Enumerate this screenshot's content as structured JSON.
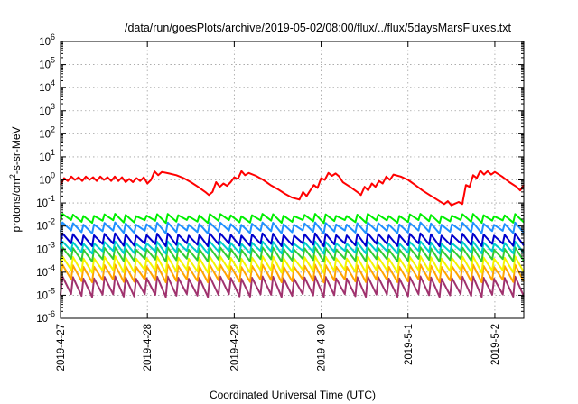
{
  "chart_data": {
    "type": "line",
    "title": "/data/run/goesPlots/archive/2019-05-02/08:00/flux/../flux/5daysMarsFluxes.txt",
    "xlabel": "Coordinated Universal Time (UTC)",
    "ylabel": {
      "pre": "protons/cm",
      "sup": "2",
      "post": "-s-sr-MeV"
    },
    "y_scale": "log",
    "ylim": [
      1e-06,
      1000000.0
    ],
    "y_ticks": [
      {
        "value": 1e-06,
        "base": "10",
        "exp": "-6"
      },
      {
        "value": 1e-05,
        "base": "10",
        "exp": "-5"
      },
      {
        "value": 0.0001,
        "base": "10",
        "exp": "-4"
      },
      {
        "value": 0.001,
        "base": "10",
        "exp": "-3"
      },
      {
        "value": 0.01,
        "base": "10",
        "exp": "-2"
      },
      {
        "value": 0.1,
        "base": "10",
        "exp": "-1"
      },
      {
        "value": 1,
        "base": "10",
        "exp": "0"
      },
      {
        "value": 10,
        "base": "10",
        "exp": "1"
      },
      {
        "value": 100,
        "base": "10",
        "exp": "2"
      },
      {
        "value": 1000,
        "base": "10",
        "exp": "3"
      },
      {
        "value": 10000,
        "base": "10",
        "exp": "4"
      },
      {
        "value": 100000,
        "base": "10",
        "exp": "5"
      },
      {
        "value": 1000000,
        "base": "10",
        "exp": "6"
      }
    ],
    "xlim": [
      "2019-04-27T00:00",
      "2019-05-02T08:00"
    ],
    "x_ticks": [
      "2019-4-27",
      "2019-4-28",
      "2019-4-29",
      "2019-4-30",
      "2019-5-1",
      "2019-5-2"
    ],
    "grid": true,
    "series": [
      {
        "color": "#ff0000",
        "points": [
          [
            "2019-04-27T00:00",
            0.6
          ],
          [
            "2019-04-27T01:00",
            1.2
          ],
          [
            "2019-04-27T02:00",
            0.9
          ],
          [
            "2019-04-27T03:00",
            1.4
          ],
          [
            "2019-04-27T04:00",
            1.0
          ],
          [
            "2019-04-27T05:00",
            1.3
          ],
          [
            "2019-04-27T06:00",
            0.9
          ],
          [
            "2019-04-27T07:00",
            1.4
          ],
          [
            "2019-04-27T08:00",
            1.0
          ],
          [
            "2019-04-27T09:00",
            1.3
          ],
          [
            "2019-04-27T10:00",
            0.9
          ],
          [
            "2019-04-27T11:00",
            1.4
          ],
          [
            "2019-04-27T12:00",
            1.0
          ],
          [
            "2019-04-27T13:00",
            1.3
          ],
          [
            "2019-04-27T14:00",
            0.9
          ],
          [
            "2019-04-27T15:00",
            1.4
          ],
          [
            "2019-04-27T16:00",
            0.9
          ],
          [
            "2019-04-27T17:00",
            1.3
          ],
          [
            "2019-04-27T18:00",
            0.8
          ],
          [
            "2019-04-27T19:00",
            1.1
          ],
          [
            "2019-04-27T20:00",
            0.8
          ],
          [
            "2019-04-27T21:00",
            1.2
          ],
          [
            "2019-04-27T22:00",
            0.9
          ],
          [
            "2019-04-27T23:00",
            1.3
          ],
          [
            "2019-04-28T00:00",
            0.7
          ],
          [
            "2019-04-28T01:00",
            1.0
          ],
          [
            "2019-04-28T02:00",
            2.3
          ],
          [
            "2019-04-28T03:00",
            1.6
          ],
          [
            "2019-04-28T04:00",
            2.2
          ],
          [
            "2019-04-28T06:00",
            1.9
          ],
          [
            "2019-04-28T08:00",
            1.6
          ],
          [
            "2019-04-28T10:00",
            1.2
          ],
          [
            "2019-04-28T12:00",
            0.8
          ],
          [
            "2019-04-28T14:00",
            0.5
          ],
          [
            "2019-04-28T16:00",
            0.3
          ],
          [
            "2019-04-28T17:00",
            0.22
          ],
          [
            "2019-04-28T18:00",
            0.3
          ],
          [
            "2019-04-28T19:00",
            0.8
          ],
          [
            "2019-04-28T20:00",
            0.5
          ],
          [
            "2019-04-28T21:00",
            0.7
          ],
          [
            "2019-04-28T22:00",
            0.55
          ],
          [
            "2019-04-28T23:00",
            0.8
          ],
          [
            "2019-04-29T00:00",
            1.3
          ],
          [
            "2019-04-29T01:00",
            1.1
          ],
          [
            "2019-04-29T02:00",
            2.4
          ],
          [
            "2019-04-29T03:00",
            1.6
          ],
          [
            "2019-04-29T04:00",
            2.0
          ],
          [
            "2019-04-29T06:00",
            1.5
          ],
          [
            "2019-04-29T08:00",
            1.0
          ],
          [
            "2019-04-29T10:00",
            0.6
          ],
          [
            "2019-04-29T12:00",
            0.4
          ],
          [
            "2019-04-29T14:00",
            0.25
          ],
          [
            "2019-04-29T16:00",
            0.17
          ],
          [
            "2019-04-29T18:00",
            0.14
          ],
          [
            "2019-04-29T19:00",
            0.3
          ],
          [
            "2019-04-29T20:00",
            0.2
          ],
          [
            "2019-04-29T21:00",
            0.35
          ],
          [
            "2019-04-29T22:00",
            0.6
          ],
          [
            "2019-04-29T23:00",
            0.45
          ],
          [
            "2019-04-30T00:00",
            1.2
          ],
          [
            "2019-04-30T01:00",
            1.0
          ],
          [
            "2019-04-30T02:00",
            2.0
          ],
          [
            "2019-04-30T03:00",
            1.5
          ],
          [
            "2019-04-30T04:00",
            1.9
          ],
          [
            "2019-04-30T05:00",
            1.4
          ],
          [
            "2019-04-30T06:00",
            0.8
          ],
          [
            "2019-04-30T08:00",
            0.5
          ],
          [
            "2019-04-30T10:00",
            0.3
          ],
          [
            "2019-04-30T11:00",
            0.22
          ],
          [
            "2019-04-30T12:00",
            0.5
          ],
          [
            "2019-04-30T13:00",
            0.35
          ],
          [
            "2019-04-30T14:00",
            0.7
          ],
          [
            "2019-04-30T15:00",
            0.5
          ],
          [
            "2019-04-30T16:00",
            0.9
          ],
          [
            "2019-04-30T17:00",
            0.7
          ],
          [
            "2019-04-30T18:00",
            1.4
          ],
          [
            "2019-04-30T19:00",
            1.0
          ],
          [
            "2019-04-30T20:00",
            1.7
          ],
          [
            "2019-04-30T22:00",
            1.4
          ],
          [
            "2019-05-01T00:00",
            1.0
          ],
          [
            "2019-05-01T02:00",
            0.6
          ],
          [
            "2019-05-01T04:00",
            0.35
          ],
          [
            "2019-05-01T06:00",
            0.22
          ],
          [
            "2019-05-01T08:00",
            0.14
          ],
          [
            "2019-05-01T10:00",
            0.09
          ],
          [
            "2019-05-01T11:00",
            0.12
          ],
          [
            "2019-05-01T12:00",
            0.08
          ],
          [
            "2019-05-01T14:00",
            0.11
          ],
          [
            "2019-05-01T15:00",
            0.09
          ],
          [
            "2019-05-01T16:00",
            0.6
          ],
          [
            "2019-05-01T17:00",
            0.5
          ],
          [
            "2019-05-01T18:00",
            1.6
          ],
          [
            "2019-05-01T19:00",
            1.2
          ],
          [
            "2019-05-01T20:00",
            2.5
          ],
          [
            "2019-05-01T21:00",
            1.7
          ],
          [
            "2019-05-01T22:00",
            2.4
          ],
          [
            "2019-05-01T23:00",
            1.7
          ],
          [
            "2019-05-02T00:00",
            2.2
          ],
          [
            "2019-05-02T02:00",
            1.4
          ],
          [
            "2019-05-02T04:00",
            0.8
          ],
          [
            "2019-05-02T06:00",
            0.5
          ],
          [
            "2019-05-02T07:00",
            0.35
          ],
          [
            "2019-05-02T08:00",
            0.6
          ]
        ]
      },
      {
        "color": "#00ee00",
        "base": 0.022,
        "amp": 1.9,
        "teeth": 44
      },
      {
        "color": "#1e90ff",
        "base": 0.0085,
        "amp": 2.3,
        "teeth": 44
      },
      {
        "color": "#0000cd",
        "base": 0.0026,
        "amp": 2.8,
        "teeth": 44
      },
      {
        "color": "#00cdcd",
        "base": 0.0012,
        "amp": 2.6,
        "teeth": 44
      },
      {
        "color": "#32cd32",
        "base": 0.0006,
        "amp": 3.2,
        "teeth": 44
      },
      {
        "color": "#f4f400",
        "base": 0.00022,
        "amp": 4.0,
        "teeth": 44
      },
      {
        "color": "#ffa500",
        "base": 9e-05,
        "amp": 4.5,
        "teeth": 44
      },
      {
        "color": "#a0326e",
        "base": 2.4e-05,
        "amp": 6.0,
        "teeth": 44
      }
    ]
  }
}
